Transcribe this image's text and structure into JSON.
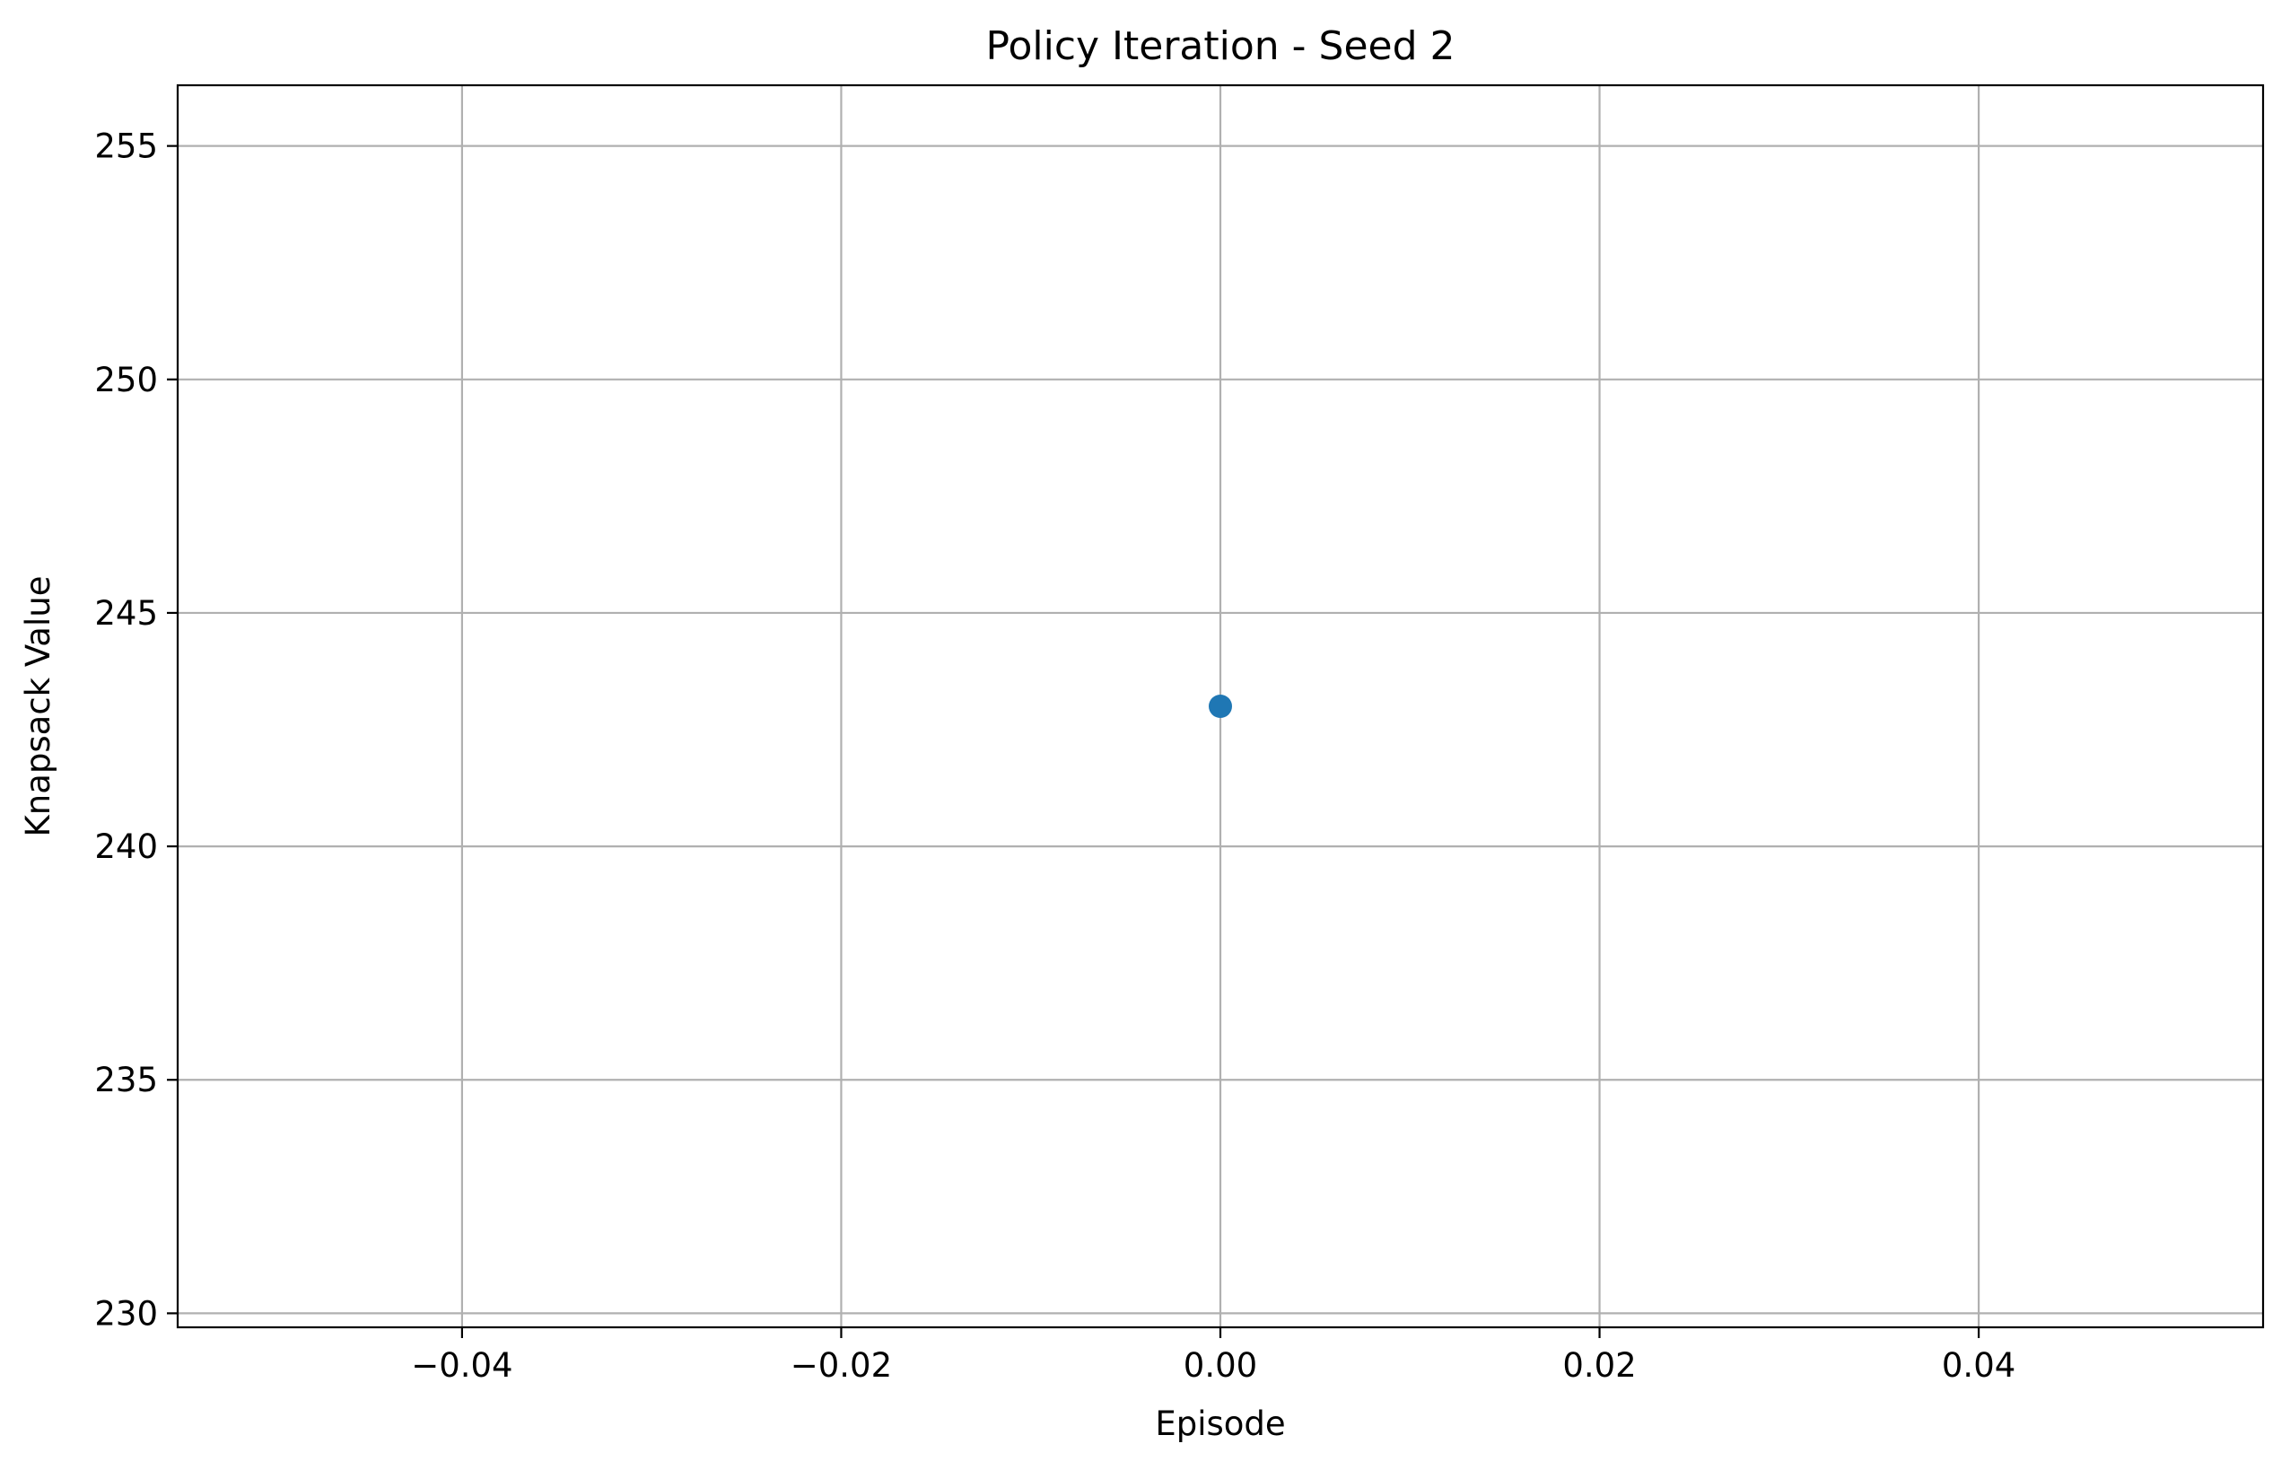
{
  "chart_data": {
    "type": "scatter",
    "title": "Policy Iteration - Seed 2",
    "xlabel": "Episode",
    "ylabel": "Knapsack Value",
    "xlim": [
      -0.055,
      0.055
    ],
    "ylim": [
      229.7,
      256.3
    ],
    "x_ticks": [
      -0.04,
      -0.02,
      0.0,
      0.02,
      0.04
    ],
    "x_tick_labels": [
      "−0.04",
      "−0.02",
      "0.00",
      "0.02",
      "0.04"
    ],
    "y_ticks": [
      230,
      235,
      240,
      245,
      250,
      255
    ],
    "y_tick_labels": [
      "230",
      "235",
      "240",
      "245",
      "250",
      "255"
    ],
    "grid": true,
    "series": [
      {
        "color": "#1f77b4",
        "marker": "circle",
        "points": [
          {
            "x": 0.0,
            "y": 243
          }
        ]
      }
    ]
  },
  "colors": {
    "grid": "#b0b0b0",
    "axes": "#000000",
    "series": "#1f77b4"
  }
}
